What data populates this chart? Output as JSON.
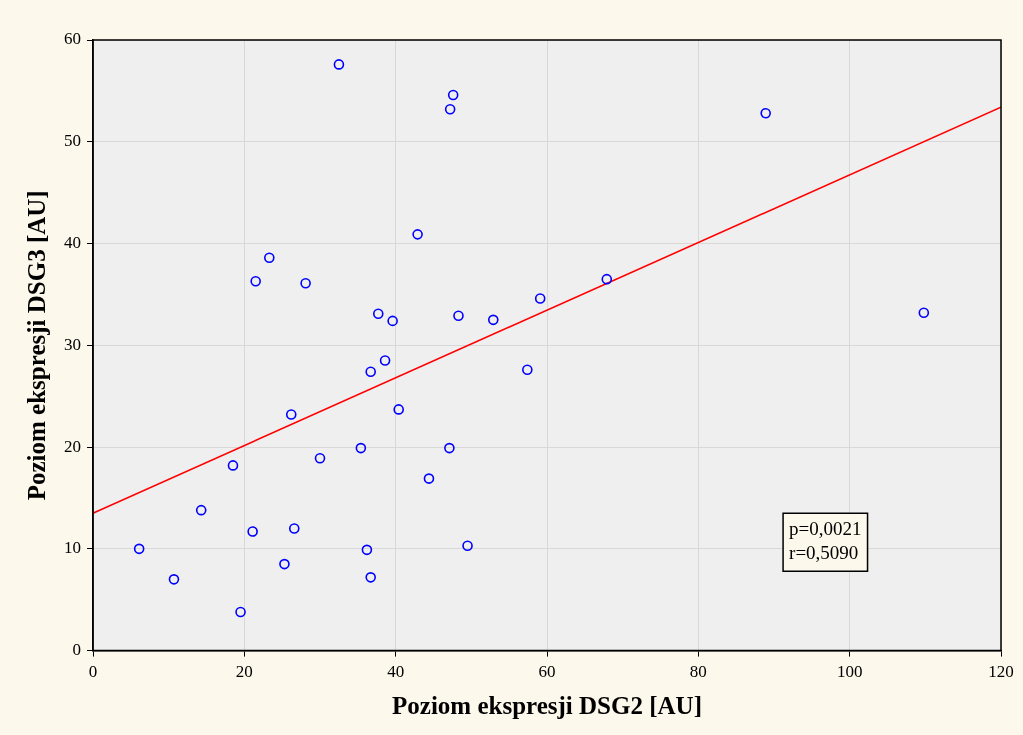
{
  "chart_data": {
    "type": "scatter",
    "xlabel": "Poziom ekspresji DSG2 [AU]",
    "ylabel": "Poziom ekspresji DSG3 [AU]",
    "xlim": [
      0,
      120
    ],
    "xticks": [
      0,
      20,
      40,
      60,
      80,
      100,
      120
    ],
    "ylim": [
      0,
      60
    ],
    "yticks": [
      0,
      10,
      20,
      30,
      40,
      50,
      60
    ],
    "grid": true,
    "annotations": [
      "p=0,0021",
      "r=0,5090"
    ],
    "series": [
      {
        "marker": "circle",
        "color": "#0000ff",
        "x": [
          32.5,
          47.6,
          47.2,
          88.9,
          42.9,
          23.3,
          21.5,
          28.1,
          67.9,
          59.1,
          37.7,
          48.3,
          39.6,
          52.9,
          109.8,
          38.6,
          36.7,
          57.4,
          26.2,
          40.4,
          30.0,
          35.4,
          47.1,
          18.5,
          44.4,
          14.3,
          6.1,
          21.1,
          26.6,
          36.2,
          49.5,
          25.3,
          36.7,
          10.7,
          19.5
        ],
        "values": [
          57.6,
          54.6,
          53.2,
          52.8,
          40.9,
          38.6,
          36.3,
          36.1,
          36.5,
          34.6,
          33.1,
          32.9,
          32.4,
          32.5,
          33.2,
          28.5,
          27.4,
          27.6,
          23.2,
          23.7,
          18.9,
          19.9,
          19.9,
          18.2,
          16.9,
          13.8,
          10.0,
          11.7,
          12.0,
          9.9,
          10.3,
          8.5,
          7.2,
          7.0,
          3.8
        ]
      },
      {
        "type": "line",
        "color": "#ff0000",
        "x": [
          0,
          120
        ],
        "values": [
          13.5,
          53.4
        ]
      }
    ]
  }
}
